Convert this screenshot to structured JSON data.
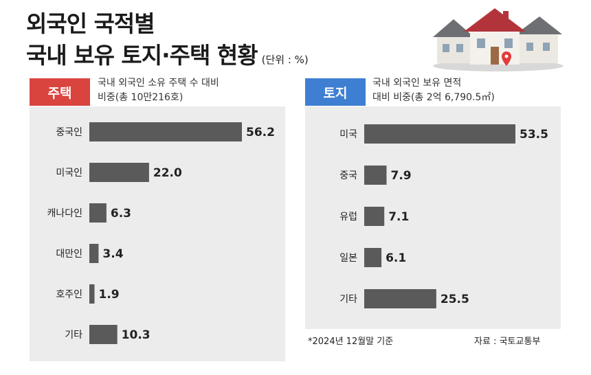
{
  "header": {
    "title_line1": "외국인 국적별",
    "title_line2": "국내 보유 토지·주택 현황",
    "unit": "(단위 : %)"
  },
  "panels": {
    "left": {
      "tag": "주택",
      "subtitle_line1": "국내 외국인 소유 주택 수 대비",
      "subtitle_line2": "비중(총 10만216호)"
    },
    "right": {
      "tag": "토지",
      "subtitle_line1": "국내 외국인 보유 면적",
      "subtitle_line2": "대비 비중(총 2억 6,790.5㎡)"
    }
  },
  "footer": {
    "note": "*2024년 12월말 기준",
    "source": "자료 : 국토교통부"
  },
  "colors": {
    "bar": "#5a5a5a",
    "housing_tag": "#d9443f",
    "land_tag": "#3f7fd2",
    "panel_bg": "#ececec"
  },
  "chart_data": [
    {
      "type": "bar",
      "orientation": "horizontal",
      "title": "주택",
      "categories": [
        "중국인",
        "미국인",
        "캐나다인",
        "대만인",
        "호주인",
        "기타"
      ],
      "values": [
        56.2,
        22.0,
        6.3,
        3.4,
        1.9,
        10.3
      ],
      "labels": [
        "56.2",
        "22.0",
        "6.3",
        "3.4",
        "1.9",
        "10.3"
      ]
    },
    {
      "type": "bar",
      "orientation": "horizontal",
      "title": "토지",
      "categories": [
        "미국",
        "중국",
        "유럽",
        "일본",
        "기타"
      ],
      "values": [
        53.5,
        7.9,
        7.1,
        6.1,
        25.5
      ],
      "labels": [
        "53.5",
        "7.9",
        "7.1",
        "6.1",
        "25.5"
      ]
    }
  ]
}
